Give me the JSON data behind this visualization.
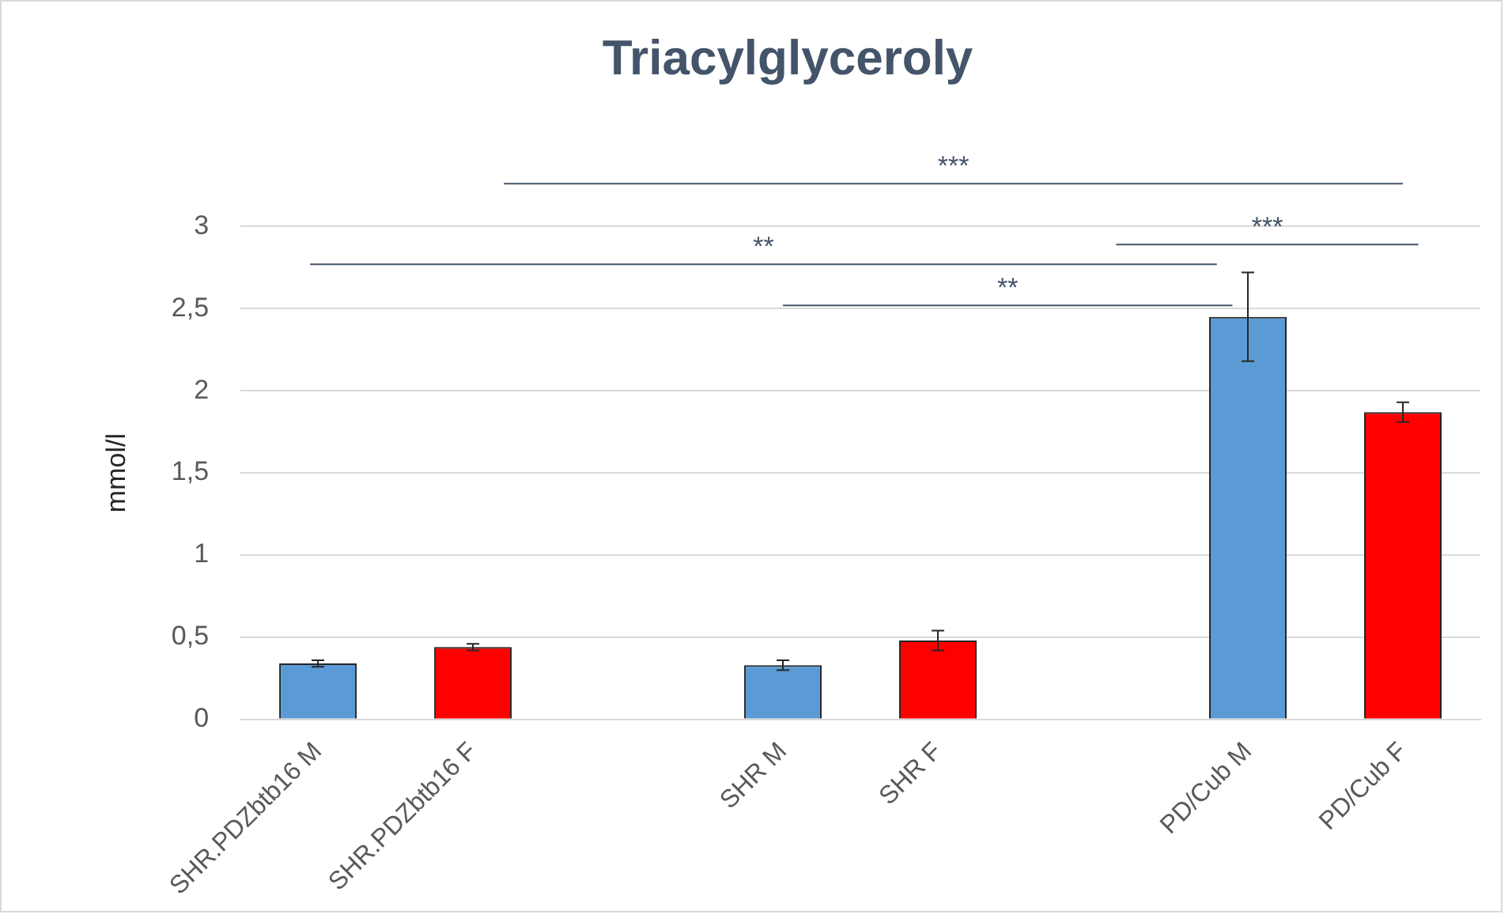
{
  "chart_data": {
    "type": "bar",
    "title": "Triacylglyceroly",
    "ylabel": "mmol/l",
    "categories": [
      "SHR.PDZbtb16 M",
      "SHR.PDZbtb16 F",
      null,
      "SHR M",
      "SHR F",
      null,
      "PD/Cub M",
      "PD/Cub F"
    ],
    "values": [
      0.34,
      0.44,
      null,
      0.33,
      0.48,
      null,
      2.45,
      1.87
    ],
    "colors": [
      "#5b9bd5",
      "#ff0000",
      null,
      "#5b9bd5",
      "#ff0000",
      null,
      "#5b9bd5",
      "#ff0000"
    ],
    "errors": [
      0.02,
      0.02,
      null,
      0.03,
      0.06,
      null,
      0.27,
      0.06
    ],
    "ylim": [
      0,
      3
    ],
    "yticks": [
      0,
      {
        "value": 0.5,
        "label": "0,5"
      },
      1,
      {
        "value": 1.5,
        "label": "1,5"
      },
      2,
      {
        "value": 2.5,
        "label": "2,5"
      },
      3
    ],
    "grid": "y",
    "legend": false,
    "annotations": [
      "***",
      "***",
      "**",
      "**"
    ]
  }
}
